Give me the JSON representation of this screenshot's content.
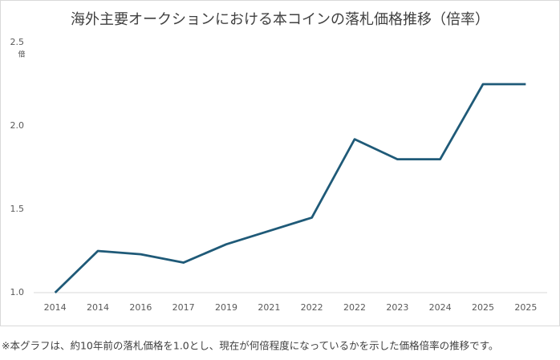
{
  "chart_data": {
    "type": "line",
    "title": "海外主要オークションにおける本コインの落札価格推移（倍率）",
    "y_unit": "倍",
    "footnote": "※本グラフは、約10年前の落札価格を1.0とし、現在が何倍程度になっているかを示した価格倍率の推移です。",
    "categories": [
      "2014",
      "2014",
      "2016",
      "2017",
      "2019",
      "2021",
      "2022",
      "2022",
      "2023",
      "2024",
      "2025",
      "2025"
    ],
    "values": [
      1.0,
      1.25,
      1.23,
      1.18,
      1.29,
      1.37,
      1.45,
      1.92,
      1.8,
      1.8,
      2.25,
      2.25
    ],
    "color": "#1f5a78",
    "ylim": [
      1.0,
      2.5
    ],
    "yticks": [
      {
        "value": 1.0,
        "label": "1.0"
      },
      {
        "value": 1.5,
        "label": "1.5"
      },
      {
        "value": 2.0,
        "label": "2.0"
      },
      2.5
    ],
    "grid": false
  }
}
